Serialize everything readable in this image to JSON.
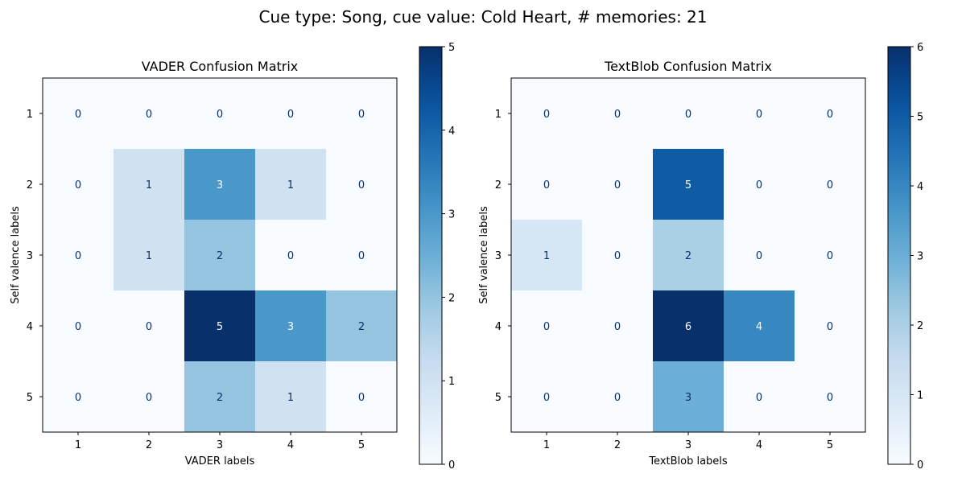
{
  "suptitle": "Cue type: Song, cue value: Cold Heart, # memories: 21",
  "colormap": "Blues",
  "colors": {
    "low": "#f7fbff",
    "high": "#08306b",
    "text_dark": "#08306b",
    "text_light": "#f7fbff"
  },
  "chart_data": [
    {
      "type": "heatmap",
      "title": "VADER Confusion Matrix",
      "xlabel": "VADER labels",
      "ylabel": "Self valence labels",
      "x_ticks": [
        "1",
        "2",
        "3",
        "4",
        "5"
      ],
      "y_ticks": [
        "1",
        "2",
        "3",
        "4",
        "5"
      ],
      "matrix": [
        [
          0,
          0,
          0,
          0,
          0
        ],
        [
          0,
          1,
          3,
          1,
          0
        ],
        [
          0,
          1,
          2,
          0,
          0
        ],
        [
          0,
          0,
          5,
          3,
          2
        ],
        [
          0,
          0,
          2,
          1,
          0
        ]
      ],
      "colorbar": {
        "min": 0,
        "max": 5,
        "ticks": [
          "0",
          "1",
          "2",
          "3",
          "4",
          "5"
        ]
      }
    },
    {
      "type": "heatmap",
      "title": "TextBlob Confusion Matrix",
      "xlabel": "TextBlob labels",
      "ylabel": "Self valence labels",
      "x_ticks": [
        "1",
        "2",
        "3",
        "4",
        "5"
      ],
      "y_ticks": [
        "1",
        "2",
        "3",
        "4",
        "5"
      ],
      "matrix": [
        [
          0,
          0,
          0,
          0,
          0
        ],
        [
          0,
          0,
          5,
          0,
          0
        ],
        [
          1,
          0,
          2,
          0,
          0
        ],
        [
          0,
          0,
          6,
          4,
          0
        ],
        [
          0,
          0,
          3,
          0,
          0
        ]
      ],
      "colorbar": {
        "min": 0,
        "max": 6,
        "ticks": [
          "0",
          "1",
          "2",
          "3",
          "4",
          "5",
          "6"
        ]
      }
    }
  ]
}
